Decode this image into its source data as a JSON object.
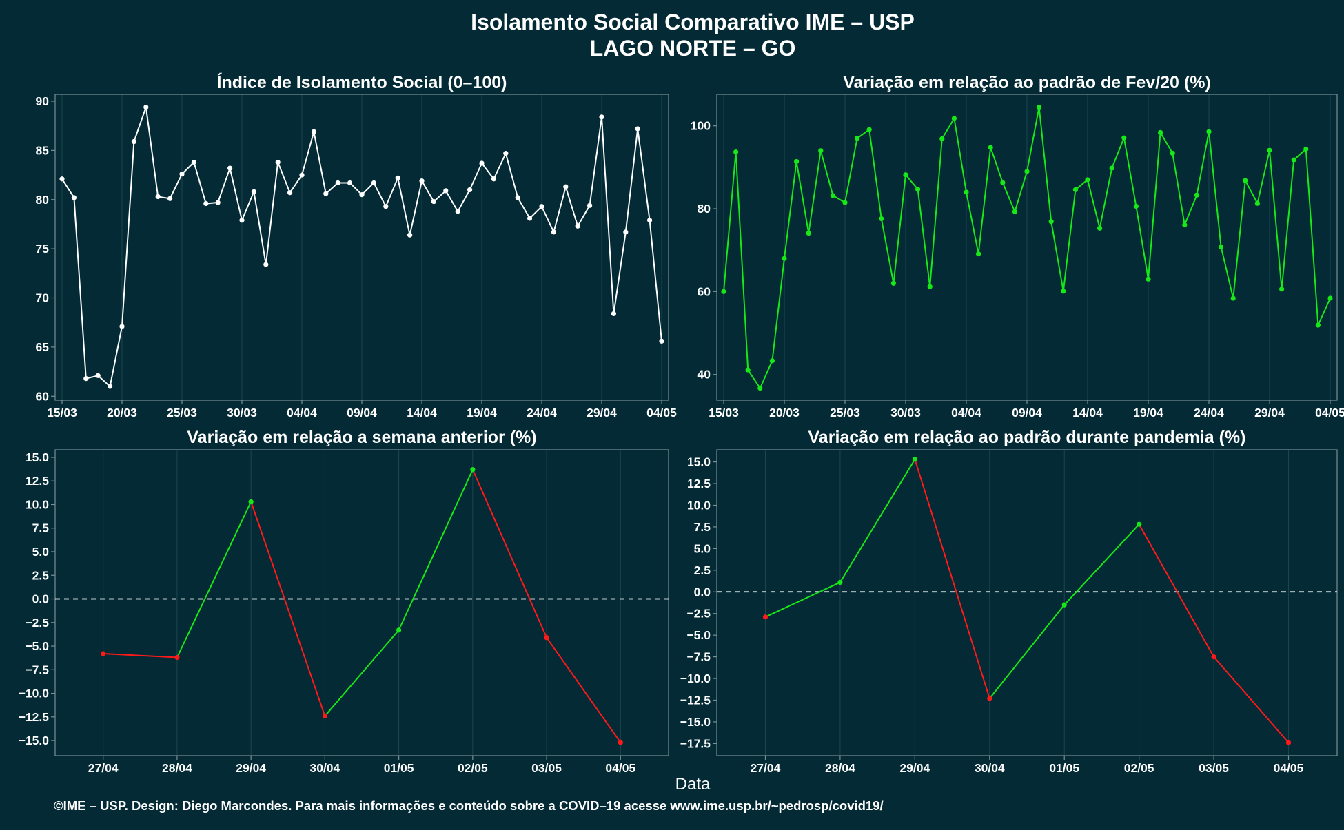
{
  "title": "Isolamento Social Comparativo IME – USP",
  "subtitle": "LAGO NORTE – GO",
  "x_axis_title": "Data",
  "footer": "©IME – USP. Design: Diego Marcondes. Para mais informações e conteúdo sobre a COVID–19 acesse www.ime.usp.br/~pedrosp/covid19/",
  "colors": {
    "background": "#032a35",
    "text": "#ffffff",
    "white_series": "#ffffff",
    "green_series": "#17e817",
    "up": "#17e817",
    "down": "#ff1a1a",
    "gridline": "#1d4650",
    "frame": "#7a8f96"
  },
  "chart_data": [
    {
      "type": "line",
      "title": "Índice de Isolamento Social (0–100)",
      "color": "white",
      "xlabel": "",
      "ylabel": "",
      "x_tick_labels": [
        "15/03",
        "20/03",
        "25/03",
        "30/03",
        "04/04",
        "09/04",
        "14/04",
        "19/04",
        "24/04",
        "29/04",
        "04/05"
      ],
      "x_tick_indices": [
        0,
        5,
        10,
        15,
        20,
        25,
        30,
        35,
        40,
        45,
        50
      ],
      "y_ticks": [
        60,
        65,
        70,
        75,
        80,
        85,
        90
      ],
      "ylim": [
        59.6,
        90.7
      ],
      "grid": true,
      "values": [
        82.1,
        80.2,
        61.8,
        62.1,
        61.0,
        67.1,
        85.9,
        89.4,
        80.3,
        80.1,
        82.6,
        83.8,
        79.6,
        79.7,
        83.2,
        77.9,
        80.8,
        73.4,
        83.8,
        80.7,
        82.5,
        86.9,
        80.6,
        81.7,
        81.7,
        80.5,
        81.7,
        79.3,
        82.2,
        76.4,
        81.9,
        79.8,
        80.9,
        78.8,
        81.0,
        83.7,
        82.1,
        84.7,
        80.2,
        78.1,
        79.3,
        76.7,
        81.3,
        77.3,
        79.4,
        88.4,
        68.4,
        76.7,
        87.2,
        77.9,
        65.6
      ]
    },
    {
      "type": "line",
      "title": "Variação em relação ao padrão de Fev/20 (%)",
      "color": "green",
      "xlabel": "",
      "ylabel": "",
      "x_tick_labels": [
        "15/03",
        "20/03",
        "25/03",
        "30/03",
        "04/04",
        "09/04",
        "14/04",
        "19/04",
        "24/04",
        "29/04",
        "04/05"
      ],
      "x_tick_indices": [
        0,
        5,
        10,
        15,
        20,
        25,
        30,
        35,
        40,
        45,
        50
      ],
      "y_ticks": [
        40,
        60,
        80,
        100
      ],
      "ylim": [
        33.8,
        107.6
      ],
      "grid": true,
      "values": [
        60.0,
        93.7,
        41.1,
        36.7,
        43.3,
        68.0,
        91.4,
        74.1,
        94.0,
        83.2,
        81.5,
        97.0,
        99.1,
        77.6,
        62.0,
        88.2,
        84.7,
        61.2,
        96.9,
        101.8,
        84.0,
        69.1,
        94.8,
        86.3,
        79.3,
        89.0,
        104.5,
        76.9,
        60.1,
        84.6,
        87.0,
        75.3,
        89.8,
        97.1,
        80.6,
        63.0,
        98.4,
        93.4,
        76.1,
        83.3,
        98.6,
        70.8,
        58.4,
        86.8,
        81.3,
        94.1,
        60.6,
        91.8,
        94.4,
        51.9,
        58.4
      ]
    },
    {
      "type": "line",
      "title": "Variação em relação a semana anterior (%)",
      "color": "updown",
      "xlabel": "",
      "ylabel": "",
      "categories": [
        "27/04",
        "28/04",
        "29/04",
        "30/04",
        "01/05",
        "02/05",
        "03/05",
        "04/05"
      ],
      "y_ticks": [
        -15.0,
        -12.5,
        -10.0,
        -7.5,
        -5.0,
        -2.5,
        0.0,
        2.5,
        5.0,
        7.5,
        10.0,
        12.5,
        15.0
      ],
      "ylim": [
        -16.6,
        15.8
      ],
      "zero_line": true,
      "grid": true,
      "values": [
        -5.8,
        -6.2,
        10.3,
        -12.4,
        -3.3,
        13.7,
        -4.1,
        -15.2
      ]
    },
    {
      "type": "line",
      "title": "Variação em relação ao padrão durante pandemia (%)",
      "color": "updown",
      "xlabel": "",
      "ylabel": "",
      "categories": [
        "27/04",
        "28/04",
        "29/04",
        "30/04",
        "01/05",
        "02/05",
        "03/05",
        "04/05"
      ],
      "y_ticks": [
        -17.5,
        -15.0,
        -12.5,
        -10.0,
        -7.5,
        -5.0,
        -2.5,
        0.0,
        2.5,
        5.0,
        7.5,
        10.0,
        12.5,
        15.0
      ],
      "ylim": [
        -18.9,
        16.4
      ],
      "zero_line": true,
      "grid": true,
      "values": [
        -2.9,
        1.1,
        15.3,
        -12.3,
        -1.5,
        7.8,
        -7.5,
        -17.4
      ]
    }
  ]
}
